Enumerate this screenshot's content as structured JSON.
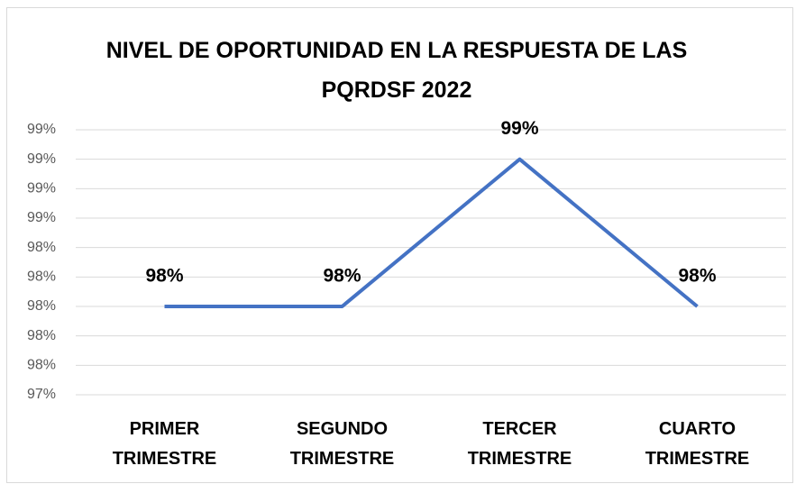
{
  "chart_data": {
    "type": "line",
    "title": "NIVEL DE OPORTUNIDAD EN LA RESPUESTA DE LAS PQRDSF 2022",
    "categories": [
      "PRIMER TRIMESTRE",
      "SEGUNDO TRIMESTRE",
      "TERCER TRIMESTRE",
      "CUARTO TRIMESTRE"
    ],
    "values": [
      98.0,
      98.0,
      99.0,
      98.0
    ],
    "value_labels": [
      "98%",
      "98%",
      "99%",
      "98%"
    ],
    "color": "#4472c4",
    "ylim": [
      97.4,
      99.2
    ],
    "yticks": [
      {
        "value": 97.4,
        "label": "97%"
      },
      {
        "value": 97.6,
        "label": "98%"
      },
      {
        "value": 97.8,
        "label": "98%"
      },
      {
        "value": 98.0,
        "label": "98%"
      },
      {
        "value": 98.2,
        "label": "98%"
      },
      {
        "value": 98.4,
        "label": "98%"
      },
      {
        "value": 98.6,
        "label": "99%"
      },
      {
        "value": 98.8,
        "label": "99%"
      },
      {
        "value": 99.0,
        "label": "99%"
      },
      {
        "value": 99.2,
        "label": "99%"
      }
    ],
    "grid": true
  }
}
